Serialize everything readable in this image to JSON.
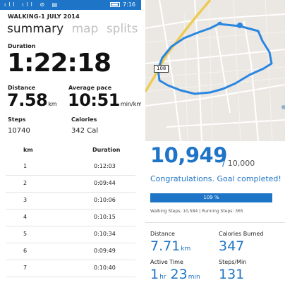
{
  "summary_screen": {
    "status_bar": {
      "signal_icons": "ıll ıll ⊘ ▤",
      "time": "7:16"
    },
    "title": "WALKING-1 JULY 2014",
    "tabs": [
      {
        "label": "summary",
        "active": true
      },
      {
        "label": "map",
        "active": false
      },
      {
        "label": "splits",
        "active": false
      }
    ],
    "duration": {
      "label": "Duration",
      "value": "1:22:18"
    },
    "distance": {
      "label": "Distance",
      "value": "7.58",
      "unit": "km"
    },
    "pace": {
      "label": "Average pace",
      "value": "10:51",
      "unit": "min/km"
    },
    "steps": {
      "label": "Steps",
      "value": "10740"
    },
    "calories": {
      "label": "Calories",
      "value": "342 Cal"
    }
  },
  "map_screen": {
    "road_label": "108",
    "route_color": "#2a86e0"
  },
  "splits_screen": {
    "headers": {
      "km": "km",
      "duration": "Duration"
    },
    "rows": [
      {
        "km": "1",
        "duration": "0:12:03"
      },
      {
        "km": "2",
        "duration": "0:09:44"
      },
      {
        "km": "3",
        "duration": "0:10:06"
      },
      {
        "km": "4",
        "duration": "0:10:15"
      },
      {
        "km": "5",
        "duration": "0:10:34"
      },
      {
        "km": "6",
        "duration": "0:09:49"
      },
      {
        "km": "7",
        "duration": "0:10:40"
      }
    ]
  },
  "goal_screen": {
    "steps": "10,949",
    "slash": "/",
    "goal": "10,000",
    "message": "Congratulations. Goal completed!",
    "progress_percent_label": "109 %",
    "progress_fraction": 1.0,
    "breakdown": "Walking Steps: 10,584  |  Running Steps: 365",
    "distance": {
      "label": "Distance",
      "value": "7.71",
      "unit": "km"
    },
    "calories": {
      "label": "Calories Burned",
      "value": "347"
    },
    "active_time": {
      "label": "Active Time",
      "hours": "1",
      "h_unit": "hr",
      "minutes": "23",
      "m_unit": "min"
    },
    "steps_per_min": {
      "label": "Steps/Min",
      "value": "131"
    }
  },
  "colors": {
    "accent": "#1e74c6",
    "muted_tab": "#c0c0c0",
    "map_bg": "#ebe8e3"
  }
}
